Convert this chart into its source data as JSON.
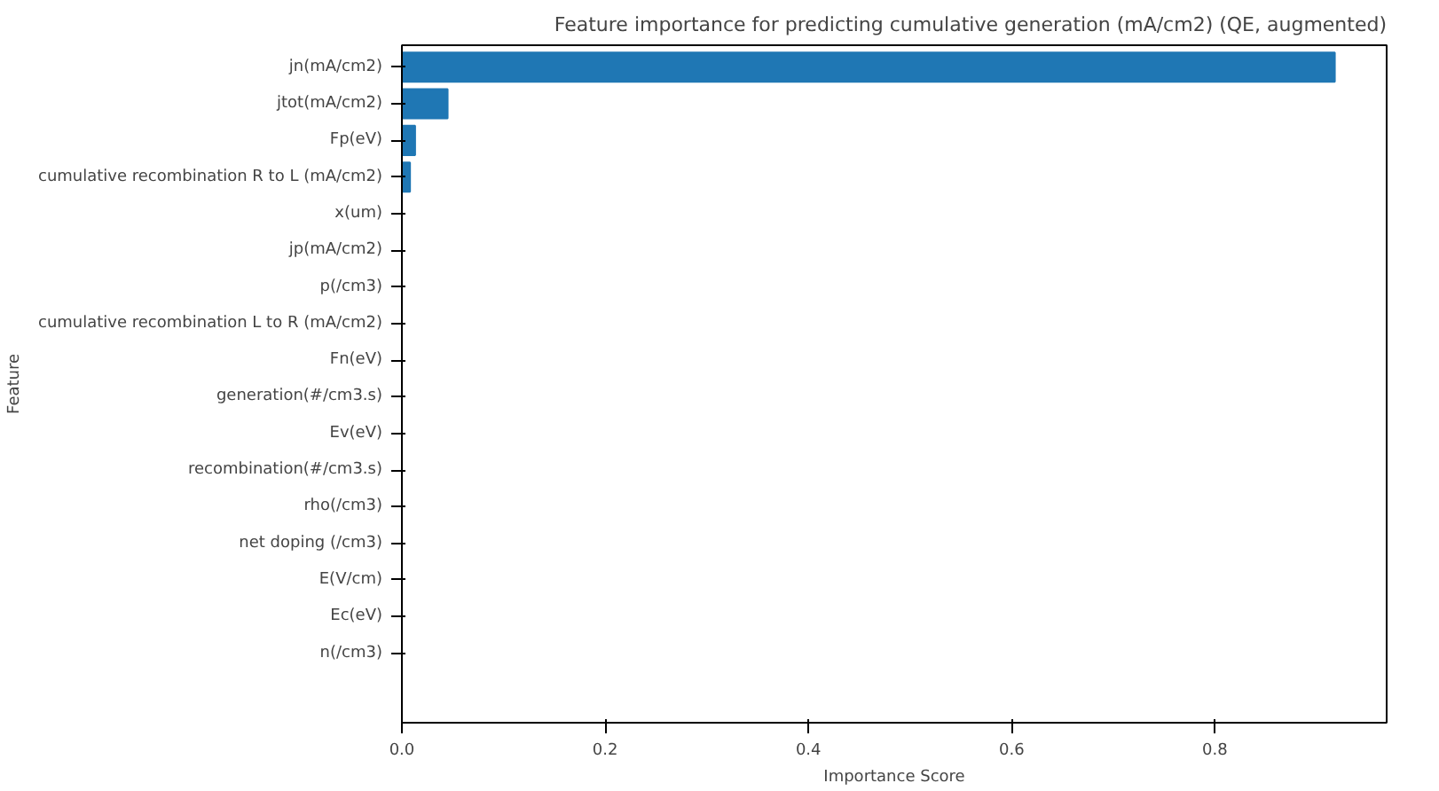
{
  "chart_data": {
    "type": "bar",
    "orientation": "horizontal",
    "title": "Feature importance for predicting cumulative generation (mA/cm2) (QE, augmented)",
    "xlabel": "Importance Score",
    "ylabel": "Feature",
    "categories": [
      "jn(mA/cm2)",
      "jtot(mA/cm2)",
      "Fp(eV)",
      "cumulative recombination R to L (mA/cm2)",
      "x(um)",
      "jp(mA/cm2)",
      "p(/cm3)",
      "cumulative recombination L to R (mA/cm2)",
      "Fn(eV)",
      "generation(#/cm3.s)",
      "Ev(eV)",
      "recombination(#/cm3.s)",
      "rho(/cm3)",
      "net doping (/cm3)",
      "E(V/cm)",
      "Ec(eV)",
      "n(/cm3)"
    ],
    "values": [
      0.918,
      0.045,
      0.013,
      0.008,
      0,
      0,
      0,
      0,
      0,
      0,
      0,
      0,
      0,
      0,
      0,
      0,
      0
    ],
    "color": "#1f77b4",
    "xlim": [
      0,
      0.969
    ],
    "xticks": [
      {
        "value": 0,
        "label": "0.0"
      },
      {
        "value": 0.2,
        "label": "0.2"
      },
      {
        "value": 0.4,
        "label": "0.4"
      },
      {
        "value": 0.6,
        "label": "0.6"
      },
      {
        "value": 0.8,
        "label": "0.8"
      }
    ],
    "grid": false
  }
}
